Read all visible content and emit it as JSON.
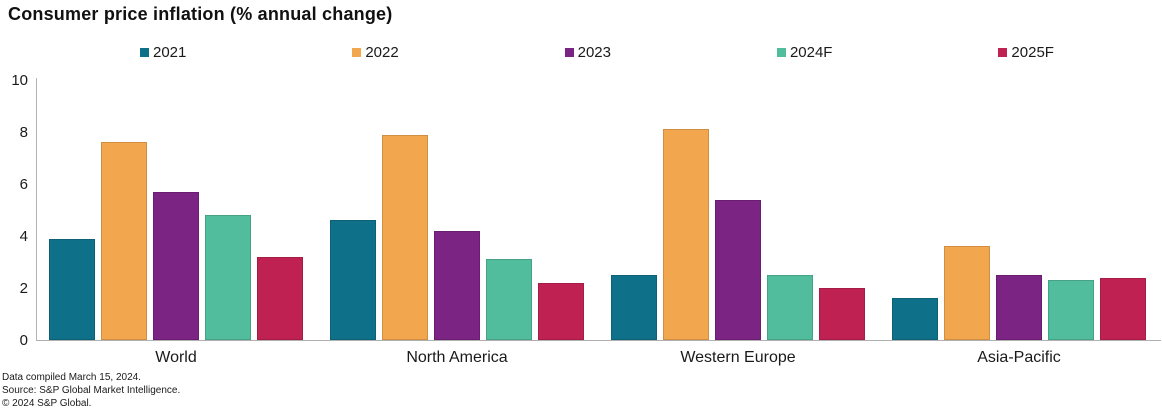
{
  "title": "Consumer price inflation (% annual change)",
  "chart_data": {
    "type": "bar",
    "title": "Consumer price inflation (% annual change)",
    "categories": [
      "World",
      "North America",
      "Western Europe",
      "Asia-Pacific"
    ],
    "series": [
      {
        "name": "2021",
        "color": "#0f7189",
        "values": [
          3.9,
          4.6,
          2.5,
          1.6
        ]
      },
      {
        "name": "2022",
        "color": "#f2a64d",
        "values": [
          7.6,
          7.9,
          8.1,
          3.6
        ]
      },
      {
        "name": "2023",
        "color": "#7c2483",
        "values": [
          5.7,
          4.2,
          5.4,
          2.5
        ]
      },
      {
        "name": "2024F",
        "color": "#52bd9c",
        "values": [
          4.8,
          3.1,
          2.5,
          2.3
        ]
      },
      {
        "name": "2025F",
        "color": "#c02153",
        "values": [
          3.2,
          2.2,
          2.0,
          2.4
        ]
      }
    ],
    "ylim": [
      0,
      10
    ],
    "yticks": [
      0,
      2,
      4,
      6,
      8,
      10
    ],
    "grid": false,
    "legend_position": "top",
    "xlabel": "",
    "ylabel": ""
  },
  "footer": {
    "line1": "Data compiled March 15, 2024.",
    "line2": "Source: S&P Global Market Intelligence.",
    "line3": "© 2024 S&P Global."
  }
}
